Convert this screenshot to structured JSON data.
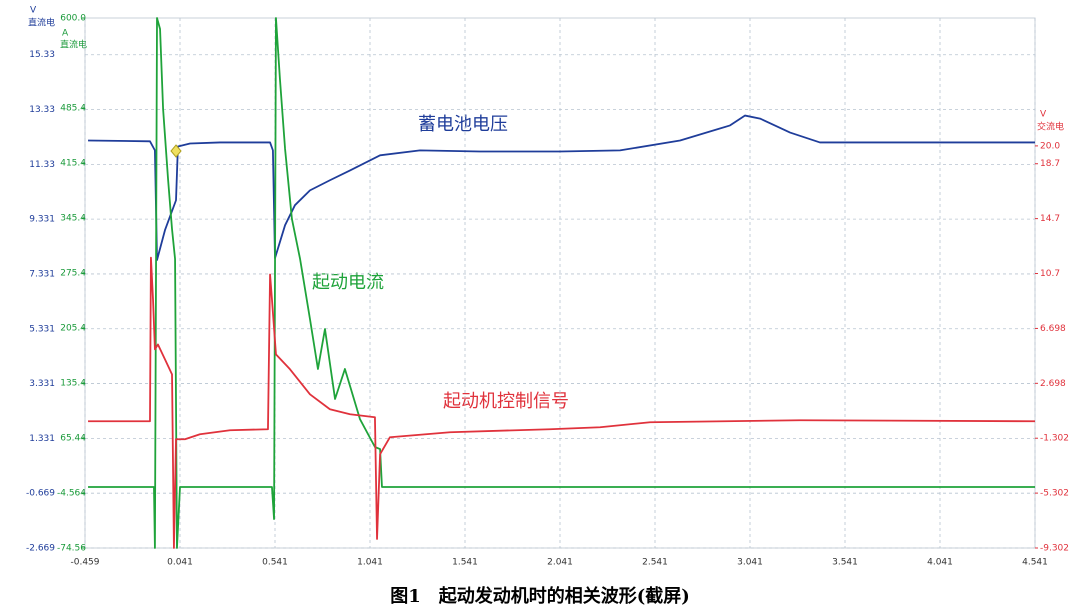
{
  "chart_data": {
    "type": "line",
    "caption": "图1　起动发动机时的相关波形(截屏)",
    "grid": true,
    "xlim": [
      -0.459,
      4.541
    ],
    "xticks": [
      -0.459,
      0.041,
      0.541,
      1.041,
      1.541,
      2.041,
      2.541,
      3.041,
      3.541,
      4.041,
      4.541
    ],
    "ylabel": {
      "unit": "V",
      "text": "直流电",
      "color": "#1f3d9a"
    },
    "ylim": [
      -2.669,
      16.67
    ],
    "yticks": [
      15.33,
      13.33,
      11.33,
      9.331,
      7.331,
      5.331,
      3.331,
      1.331,
      -0.669,
      -2.669
    ],
    "y2label": {
      "unit": "A",
      "text": "直流电",
      "color": "#1a9a3a"
    },
    "y2lim": [
      -74.56,
      600
    ],
    "y2ticks": [
      {
        "value": 600,
        "label": "600.0"
      },
      485.4,
      415.4,
      345.4,
      275.4,
      205.4,
      135.4,
      65.44,
      -4.564,
      -74.56
    ],
    "y3label": {
      "unit": "V",
      "text": "交流电",
      "color": "#e0323c"
    },
    "y3lim": [
      -9.302,
      29.32
    ],
    "y3ticks": [
      {
        "value": 20,
        "label": "20.0"
      },
      18.7,
      14.7,
      10.7,
      6.698,
      2.698,
      -1.302,
      -5.302,
      -9.302
    ],
    "series": [
      {
        "name": "蓄电池电压",
        "color": "#1f3d9a",
        "axis": "y",
        "x": [
          -0.443,
          -0.117,
          -0.091,
          -0.08,
          -0.038,
          0.02,
          0.03,
          0.094,
          0.252,
          0.515,
          0.53,
          0.541,
          0.594,
          0.646,
          0.725,
          0.83,
          0.936,
          1.094,
          1.304,
          1.62,
          2.041,
          2.357,
          2.673,
          2.936,
          3.015,
          3.094,
          3.252,
          3.409,
          4.541
        ],
        "values": [
          12.2,
          12.17,
          11.84,
          7.84,
          8.93,
          10.02,
          11.98,
          12.09,
          12.13,
          12.13,
          11.84,
          7.91,
          9.11,
          9.84,
          10.38,
          10.75,
          11.11,
          11.66,
          11.84,
          11.8,
          11.8,
          11.84,
          12.2,
          12.75,
          13.11,
          13.0,
          12.49,
          12.13,
          12.13
        ]
      },
      {
        "name": "起动电流",
        "color": "#1fa33a",
        "axis": "y2",
        "x": [
          -0.443,
          -0.096,
          -0.091,
          -0.08,
          -0.064,
          -0.048,
          -0.022,
          -0.001,
          0.015,
          0.025,
          0.041,
          0.525,
          0.536,
          0.546,
          0.567,
          0.594,
          0.63,
          0.673,
          0.725,
          0.767,
          0.804,
          0.857,
          0.909,
          0.988,
          1.067,
          1.094,
          1.104,
          4.541
        ],
        "values": [
          3.07,
          3.07,
          -74.56,
          600,
          586.0,
          484.2,
          395.1,
          331.4,
          293.3,
          -74.56,
          3.07,
          3.07,
          -37.7,
          600,
          522.3,
          433.3,
          344.2,
          293.3,
          216.9,
          153.3,
          204.2,
          115.1,
          153.3,
          89.6,
          54.0,
          51.4,
          3.07,
          3.07
        ]
      },
      {
        "name": "起动机控制信号",
        "color": "#e0323c",
        "axis": "y3",
        "x": [
          -0.443,
          -0.117,
          -0.112,
          -0.101,
          -0.091,
          -0.075,
          -0.038,
          -0.001,
          0.009,
          0.02,
          0.067,
          0.146,
          0.304,
          0.504,
          0.515,
          0.525,
          0.546,
          0.62,
          0.725,
          0.83,
          0.936,
          1.067,
          1.078,
          1.094,
          1.146,
          1.462,
          1.988,
          2.252,
          2.515,
          3.304,
          4.541
        ],
        "values": [
          -0.066,
          -0.066,
          11.86,
          8.81,
          5.17,
          5.53,
          4.44,
          3.35,
          -9.302,
          -1.375,
          -1.375,
          -1.011,
          -0.72,
          -0.647,
          10.63,
          8.81,
          4.81,
          3.72,
          1.898,
          0.807,
          0.443,
          0.225,
          -8.647,
          -2.466,
          -1.229,
          -0.866,
          -0.647,
          -0.502,
          -0.138,
          0.007,
          -0.066
        ]
      }
    ]
  }
}
